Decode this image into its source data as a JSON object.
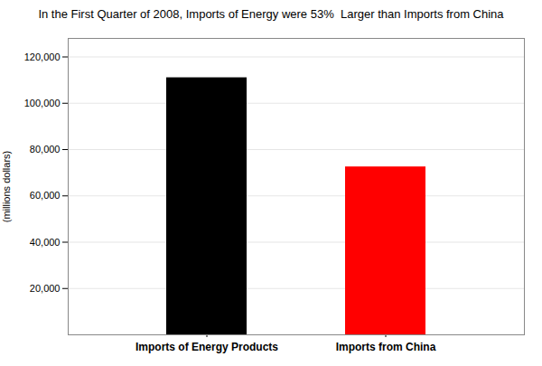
{
  "chart_data": {
    "type": "bar",
    "title": "In the First Quarter of 2008, Imports of Energy were 53%  Larger than Imports from China",
    "categories": [
      "Imports of Energy Products",
      "Imports from China"
    ],
    "values": [
      111000,
      72500
    ],
    "colors": [
      "#000000",
      "#ff0000"
    ],
    "ylabel": "(millions dollars)",
    "ylim": [
      0,
      128000
    ],
    "yticks": [
      {
        "value": 20000,
        "label": "20,000"
      },
      {
        "value": 40000,
        "label": "40,000"
      },
      {
        "value": 60000,
        "label": "60,000"
      },
      {
        "value": 80000,
        "label": "80,000"
      },
      {
        "value": 100000,
        "label": "100,000"
      },
      {
        "value": 120000,
        "label": "120,000"
      }
    ],
    "grid": true
  }
}
